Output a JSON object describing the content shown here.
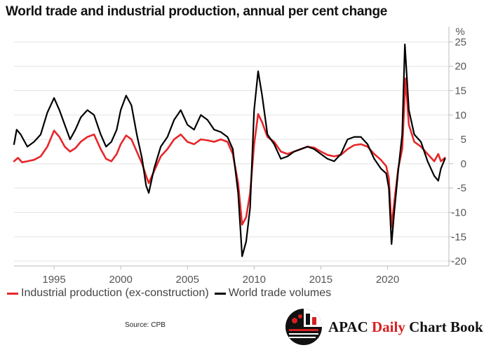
{
  "chart_data": {
    "type": "line",
    "title": "World trade and industrial production, annual per cent change",
    "ylabel": "%",
    "xlabel": "",
    "xlim": [
      1992.0,
      2024.6
    ],
    "ylim": [
      -21,
      27
    ],
    "yticks": [
      25,
      20,
      15,
      10,
      5,
      0,
      -5,
      -10,
      -15,
      -20
    ],
    "xticks": [
      1995,
      2000,
      2005,
      2010,
      2015,
      2020
    ],
    "grid": "horizontal",
    "legend_position": "bottom-left",
    "source": "Source: CPB",
    "series": [
      {
        "name": "Industrial production (ex-construction)",
        "color": "#e8262a",
        "points": [
          [
            1992.0,
            0.5
          ],
          [
            1992.3,
            1.2
          ],
          [
            1992.6,
            0.3
          ],
          [
            1993.0,
            0.5
          ],
          [
            1993.5,
            0.8
          ],
          [
            1994.0,
            1.5
          ],
          [
            1994.5,
            3.5
          ],
          [
            1995.0,
            6.8
          ],
          [
            1995.4,
            5.5
          ],
          [
            1995.8,
            3.5
          ],
          [
            1996.2,
            2.5
          ],
          [
            1996.6,
            3.2
          ],
          [
            1997.0,
            4.5
          ],
          [
            1997.5,
            5.5
          ],
          [
            1998.0,
            6.0
          ],
          [
            1998.5,
            3.0
          ],
          [
            1998.9,
            1.0
          ],
          [
            1999.3,
            0.5
          ],
          [
            1999.7,
            2.0
          ],
          [
            2000.0,
            4.0
          ],
          [
            2000.4,
            5.8
          ],
          [
            2000.8,
            5.0
          ],
          [
            2001.2,
            2.5
          ],
          [
            2001.6,
            0.0
          ],
          [
            2001.9,
            -2.5
          ],
          [
            2002.1,
            -4.0
          ],
          [
            2002.5,
            -1.5
          ],
          [
            2003.0,
            1.5
          ],
          [
            2003.5,
            3.0
          ],
          [
            2004.0,
            5.0
          ],
          [
            2004.5,
            6.0
          ],
          [
            2005.0,
            4.5
          ],
          [
            2005.5,
            4.0
          ],
          [
            2006.0,
            5.0
          ],
          [
            2006.5,
            4.8
          ],
          [
            2007.0,
            4.5
          ],
          [
            2007.5,
            5.0
          ],
          [
            2008.0,
            4.5
          ],
          [
            2008.4,
            2.0
          ],
          [
            2008.8,
            -4.0
          ],
          [
            2009.1,
            -12.5
          ],
          [
            2009.4,
            -11.0
          ],
          [
            2009.7,
            -6.0
          ],
          [
            2010.0,
            4.0
          ],
          [
            2010.3,
            10.2
          ],
          [
            2010.6,
            8.5
          ],
          [
            2011.0,
            5.5
          ],
          [
            2011.5,
            4.5
          ],
          [
            2012.0,
            2.5
          ],
          [
            2012.5,
            2.0
          ],
          [
            2013.0,
            2.5
          ],
          [
            2013.5,
            3.0
          ],
          [
            2014.0,
            3.5
          ],
          [
            2014.5,
            3.3
          ],
          [
            2015.0,
            2.5
          ],
          [
            2015.5,
            1.8
          ],
          [
            2016.0,
            1.5
          ],
          [
            2016.5,
            1.8
          ],
          [
            2017.0,
            3.0
          ],
          [
            2017.5,
            3.8
          ],
          [
            2018.0,
            4.0
          ],
          [
            2018.5,
            3.5
          ],
          [
            2019.0,
            2.0
          ],
          [
            2019.5,
            0.8
          ],
          [
            2019.9,
            -0.5
          ],
          [
            2020.1,
            -3.0
          ],
          [
            2020.3,
            -13.0
          ],
          [
            2020.5,
            -8.0
          ],
          [
            2020.8,
            -1.0
          ],
          [
            2021.1,
            3.0
          ],
          [
            2021.35,
            17.5
          ],
          [
            2021.6,
            8.0
          ],
          [
            2022.0,
            4.5
          ],
          [
            2022.5,
            3.5
          ],
          [
            2023.0,
            2.0
          ],
          [
            2023.5,
            0.5
          ],
          [
            2023.8,
            2.0
          ],
          [
            2024.0,
            0.5
          ],
          [
            2024.3,
            1.2
          ]
        ]
      },
      {
        "name": "World trade volumes",
        "color": "#000000",
        "points": [
          [
            1992.0,
            4.0
          ],
          [
            1992.2,
            7.0
          ],
          [
            1992.5,
            6.0
          ],
          [
            1993.0,
            3.5
          ],
          [
            1993.5,
            4.5
          ],
          [
            1994.0,
            6.0
          ],
          [
            1994.5,
            10.5
          ],
          [
            1995.0,
            13.5
          ],
          [
            1995.4,
            11.0
          ],
          [
            1995.8,
            8.0
          ],
          [
            1996.2,
            5.0
          ],
          [
            1996.6,
            7.0
          ],
          [
            1997.0,
            9.5
          ],
          [
            1997.5,
            11.0
          ],
          [
            1998.0,
            10.0
          ],
          [
            1998.5,
            6.0
          ],
          [
            1998.9,
            3.5
          ],
          [
            1999.3,
            4.5
          ],
          [
            1999.7,
            7.0
          ],
          [
            2000.0,
            11.0
          ],
          [
            2000.4,
            14.0
          ],
          [
            2000.8,
            12.0
          ],
          [
            2001.2,
            6.0
          ],
          [
            2001.6,
            1.0
          ],
          [
            2001.9,
            -4.5
          ],
          [
            2002.1,
            -6.0
          ],
          [
            2002.5,
            -1.0
          ],
          [
            2003.0,
            3.5
          ],
          [
            2003.5,
            5.5
          ],
          [
            2004.0,
            9.0
          ],
          [
            2004.5,
            11.0
          ],
          [
            2005.0,
            8.0
          ],
          [
            2005.5,
            7.0
          ],
          [
            2006.0,
            10.0
          ],
          [
            2006.5,
            9.0
          ],
          [
            2007.0,
            7.0
          ],
          [
            2007.5,
            6.5
          ],
          [
            2008.0,
            5.5
          ],
          [
            2008.4,
            3.0
          ],
          [
            2008.8,
            -6.0
          ],
          [
            2009.1,
            -19.0
          ],
          [
            2009.4,
            -16.0
          ],
          [
            2009.7,
            -9.0
          ],
          [
            2010.0,
            11.0
          ],
          [
            2010.3,
            19.0
          ],
          [
            2010.6,
            14.0
          ],
          [
            2011.0,
            6.0
          ],
          [
            2011.5,
            4.0
          ],
          [
            2012.0,
            1.0
          ],
          [
            2012.5,
            1.5
          ],
          [
            2013.0,
            2.5
          ],
          [
            2013.5,
            3.0
          ],
          [
            2014.0,
            3.5
          ],
          [
            2014.5,
            3.0
          ],
          [
            2015.0,
            2.0
          ],
          [
            2015.5,
            1.0
          ],
          [
            2016.0,
            0.5
          ],
          [
            2016.5,
            2.0
          ],
          [
            2017.0,
            5.0
          ],
          [
            2017.5,
            5.5
          ],
          [
            2018.0,
            5.5
          ],
          [
            2018.5,
            4.0
          ],
          [
            2019.0,
            1.0
          ],
          [
            2019.5,
            -1.0
          ],
          [
            2019.9,
            -2.0
          ],
          [
            2020.1,
            -5.0
          ],
          [
            2020.3,
            -16.5
          ],
          [
            2020.5,
            -10.0
          ],
          [
            2020.8,
            -1.5
          ],
          [
            2021.1,
            6.0
          ],
          [
            2021.3,
            24.5
          ],
          [
            2021.6,
            11.0
          ],
          [
            2022.0,
            6.0
          ],
          [
            2022.5,
            4.5
          ],
          [
            2023.0,
            0.5
          ],
          [
            2023.5,
            -2.5
          ],
          [
            2023.8,
            -3.5
          ],
          [
            2024.0,
            -1.0
          ],
          [
            2024.3,
            1.0
          ]
        ]
      }
    ]
  },
  "legend": {
    "items": [
      {
        "label": "Industrial production (ex-construction)",
        "color": "#e8262a"
      },
      {
        "label": "World trade volumes",
        "color": "#000000"
      }
    ]
  },
  "footer": {
    "source": "Source: CPB",
    "brand_prefix": "APAC ",
    "brand_highlight": "Daily",
    "brand_suffix": " Chart Book"
  }
}
